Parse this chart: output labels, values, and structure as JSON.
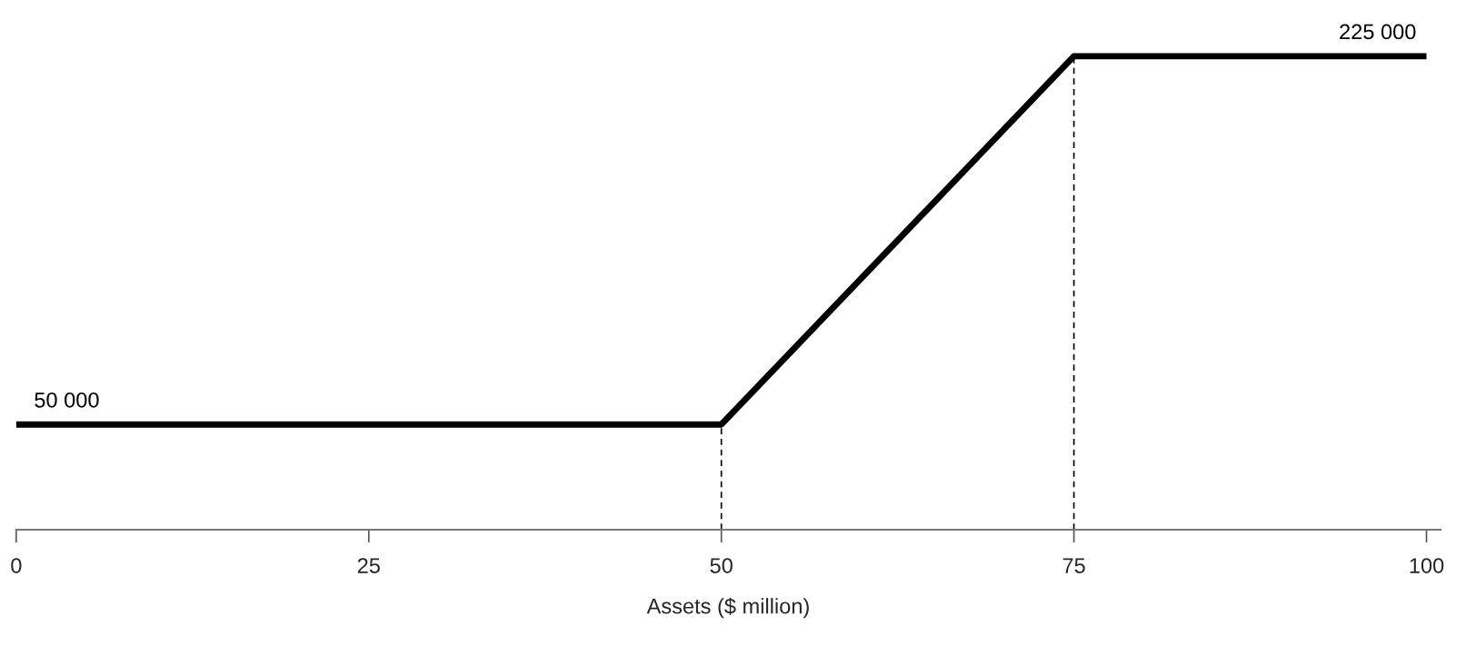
{
  "chart_data": {
    "type": "line",
    "xlabel": "Assets ($ million)",
    "x": [
      0,
      50,
      75,
      100
    ],
    "series": [
      {
        "color": "#000000",
        "values": [
          50000,
          50000,
          225000,
          225000
        ],
        "value_labels": [
          "50 000",
          null,
          null,
          "225 000"
        ]
      }
    ],
    "xlim": [
      0,
      101
    ],
    "xticks": [
      0,
      25,
      50,
      75,
      100
    ],
    "ylim": [
      0,
      225000
    ],
    "ref_lines": [
      {
        "axis": "x",
        "value": 50,
        "color": "#000000",
        "line_style": "dashed"
      },
      {
        "axis": "x",
        "value": 75,
        "color": "#000000",
        "line_style": "dashed"
      }
    ],
    "grid": false,
    "tick_labels": "x",
    "legend": false
  }
}
